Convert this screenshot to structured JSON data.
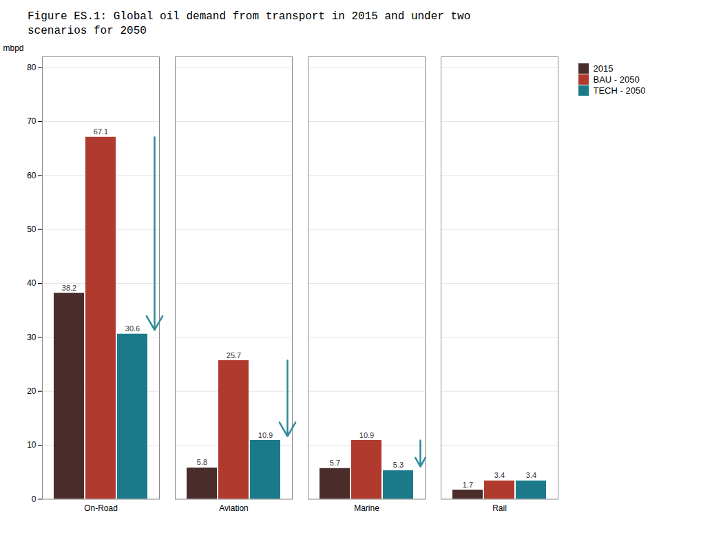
{
  "chart_data": {
    "type": "bar",
    "title": "Figure ES.1: Global oil demand from transport in 2015 and under two\nscenarios for 2050",
    "ylabel": "mbpd",
    "categories": [
      "On-Road",
      "Aviation",
      "Marine",
      "Rail"
    ],
    "series": [
      {
        "name": "2015",
        "color": "#4A2C2A",
        "values": [
          38.2,
          5.8,
          5.7,
          1.7
        ]
      },
      {
        "name": "BAU - 2050",
        "color": "#B03A2E",
        "values": [
          67.1,
          25.7,
          10.9,
          3.4
        ]
      },
      {
        "name": "TECH - 2050",
        "color": "#1A7A8A",
        "values": [
          30.6,
          10.9,
          5.3,
          3.4
        ]
      }
    ],
    "ylim": [
      0,
      82
    ],
    "yticks": [
      0,
      10,
      20,
      30,
      40,
      50,
      60,
      70,
      80
    ],
    "grid": true,
    "data_labels": true,
    "legend": "right",
    "arrows": [
      {
        "category": "On-Road",
        "from": 67.1,
        "to": 30.6,
        "color": "#2E8B9A"
      },
      {
        "category": "Aviation",
        "from": 25.7,
        "to": 10.9,
        "color": "#2E8B9A"
      },
      {
        "category": "Marine",
        "from": 10.9,
        "to": 5.3,
        "color": "#2E8B9A"
      }
    ]
  }
}
